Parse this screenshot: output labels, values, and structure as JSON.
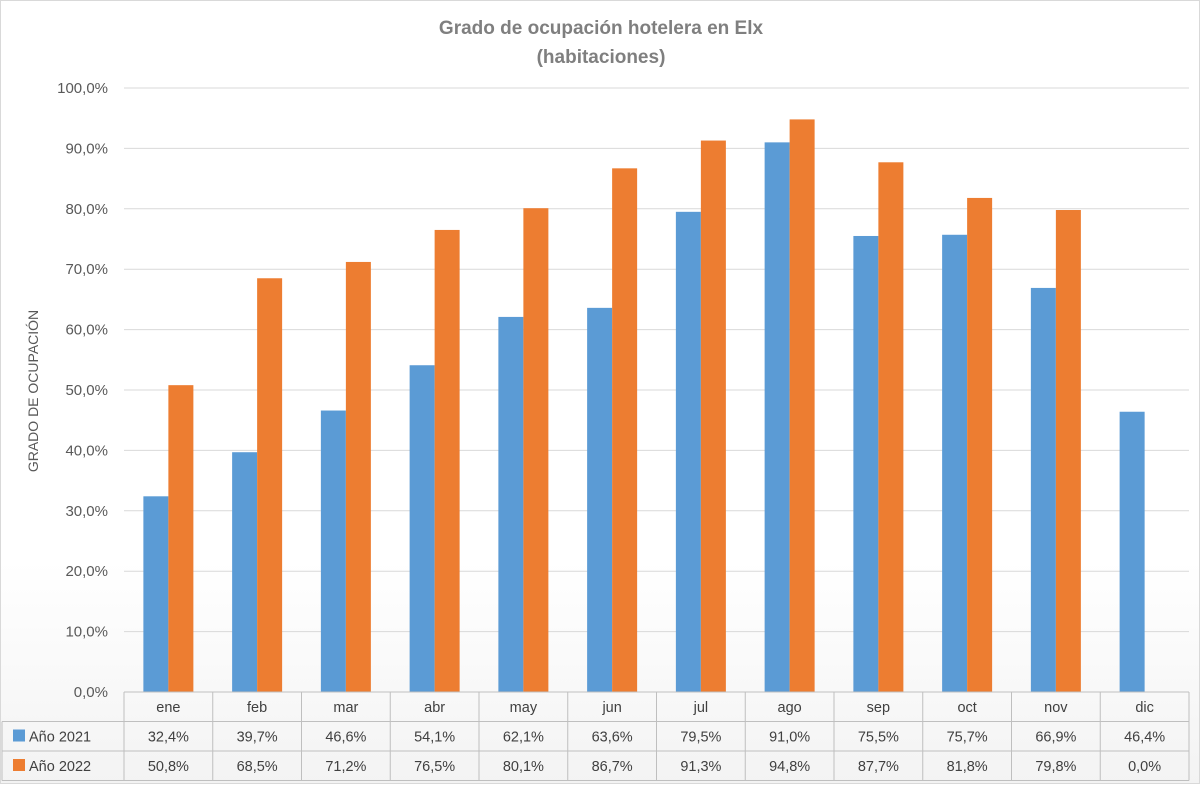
{
  "chart_data": {
    "type": "bar",
    "title": "Grado de ocupación hotelera en Elx",
    "subtitle": "(habitaciones)",
    "xlabel": "",
    "ylabel": "GRADO DE OCUPACIÓN",
    "ylim": [
      0,
      100
    ],
    "y_ticks": [
      "0,0%",
      "10,0%",
      "20,0%",
      "30,0%",
      "40,0%",
      "50,0%",
      "60,0%",
      "70,0%",
      "80,0%",
      "90,0%",
      "100,0%"
    ],
    "grid": true,
    "legend": "data-table",
    "categories": [
      "ene",
      "feb",
      "mar",
      "abr",
      "may",
      "jun",
      "jul",
      "ago",
      "sep",
      "oct",
      "nov",
      "dic"
    ],
    "series": [
      {
        "name": "Año 2021",
        "color": "#5b9bd5",
        "values": [
          32.4,
          39.7,
          46.6,
          54.1,
          62.1,
          63.6,
          79.5,
          91.0,
          75.5,
          75.7,
          66.9,
          46.4
        ],
        "labels": [
          "32,4%",
          "39,7%",
          "46,6%",
          "54,1%",
          "62,1%",
          "63,6%",
          "79,5%",
          "91,0%",
          "75,5%",
          "75,7%",
          "66,9%",
          "46,4%"
        ]
      },
      {
        "name": "Año 2022",
        "color": "#ed7d31",
        "values": [
          50.8,
          68.5,
          71.2,
          76.5,
          80.1,
          86.7,
          91.3,
          94.8,
          87.7,
          81.8,
          79.8,
          0.0
        ],
        "labels": [
          "50,8%",
          "68,5%",
          "71,2%",
          "76,5%",
          "80,1%",
          "86,7%",
          "91,3%",
          "94,8%",
          "87,7%",
          "81,8%",
          "79,8%",
          "0,0%"
        ]
      }
    ]
  }
}
